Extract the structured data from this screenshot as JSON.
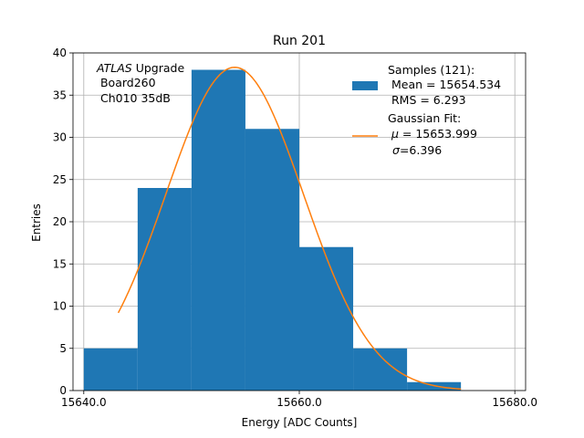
{
  "chart_data": {
    "type": "bar",
    "title": "Run 201",
    "xlabel": "Energy [ADC Counts]",
    "ylabel": "Entries",
    "xlim": [
      15639,
      15681
    ],
    "ylim": [
      0,
      40
    ],
    "xticks": [
      15640,
      15660,
      15680
    ],
    "xtick_labels": [
      "15640.0",
      "15660.0",
      "15680.0"
    ],
    "yticks": [
      0,
      5,
      10,
      15,
      20,
      25,
      30,
      35,
      40
    ],
    "ytick_labels": [
      "0",
      "5",
      "10",
      "15",
      "20",
      "25",
      "30",
      "35",
      "40"
    ],
    "grid": true,
    "legend_position": "top-right",
    "bins": [
      {
        "start": 15640,
        "end": 15645,
        "count": 5
      },
      {
        "start": 15645,
        "end": 15650,
        "count": 24
      },
      {
        "start": 15650,
        "end": 15655,
        "count": 38
      },
      {
        "start": 15655,
        "end": 15660,
        "count": 31
      },
      {
        "start": 15660,
        "end": 15665,
        "count": 17
      },
      {
        "start": 15665,
        "end": 15670,
        "count": 5
      },
      {
        "start": 15670,
        "end": 15675,
        "count": 1
      }
    ],
    "fit": {
      "type": "gaussian",
      "mu": 15653.999,
      "sigma": 6.396,
      "amplitude": 38.3,
      "x_range": [
        15643.2,
        15675
      ]
    },
    "colors": {
      "histogram": "#1f77b4",
      "fit": "#ff7f0e",
      "grid": "#b0b0b0"
    },
    "legend": {
      "samples": {
        "line1": "Samples (121):",
        "line2": " Mean = 15654.534",
        "line3": " RMS = 6.293"
      },
      "fit": {
        "line1": "Gaussian Fit:",
        "line2_prefix": " μ = ",
        "line2_value": "15653.999",
        "line3_prefix": "σ",
        "line3_value": "=6.396"
      }
    },
    "annotation": {
      "italic": "ATLAS",
      "rest": " Upgrade",
      "line2": " Board260",
      "line3": " Ch010 35dB"
    }
  }
}
